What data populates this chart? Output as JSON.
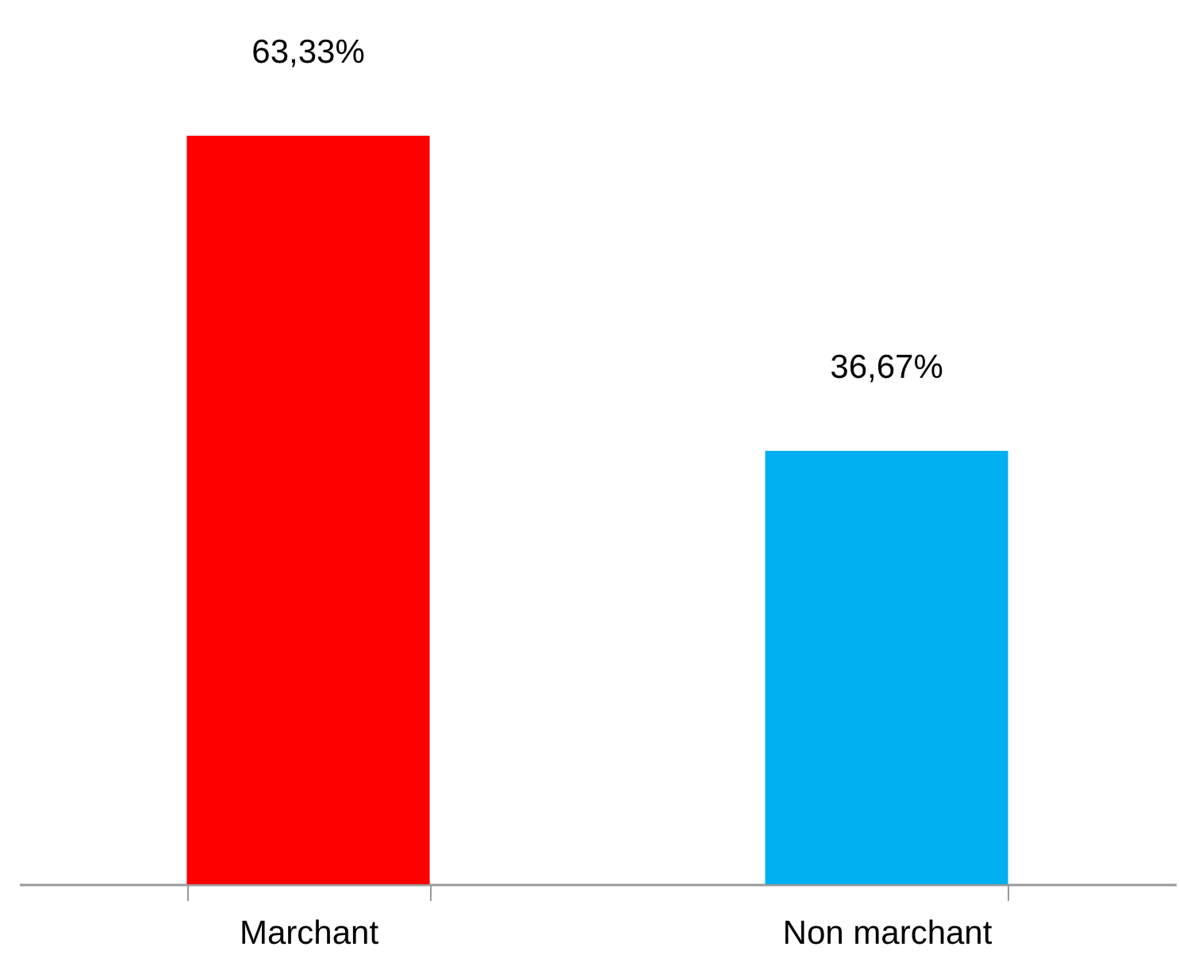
{
  "chart_data": {
    "type": "bar",
    "categories": [
      "Marchant",
      "Non marchant"
    ],
    "values": [
      63.33,
      36.67
    ],
    "value_labels": [
      "63,33%",
      "36,67%"
    ],
    "colors": [
      "#ff0000",
      "#00b0f0"
    ],
    "grid": false
  }
}
